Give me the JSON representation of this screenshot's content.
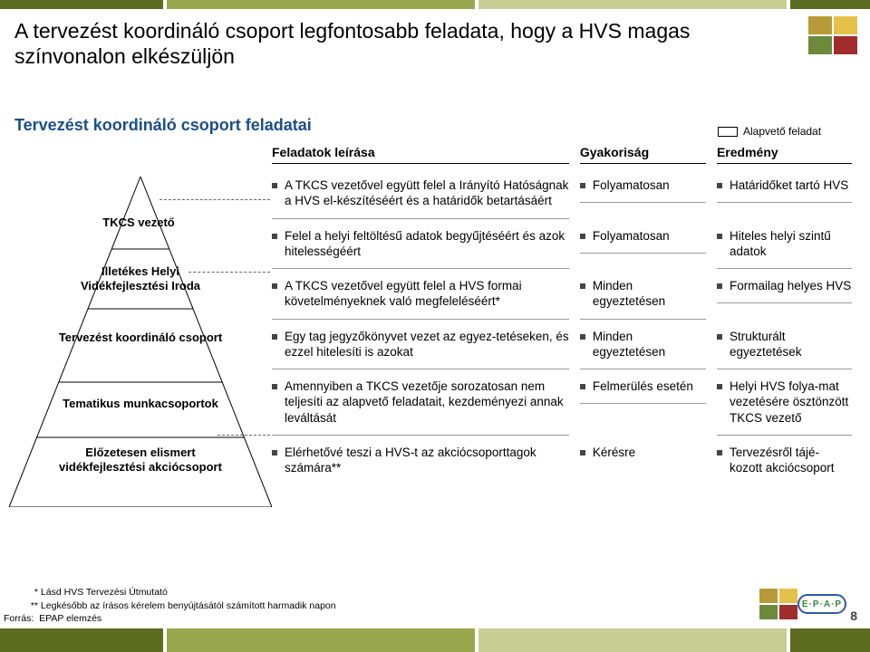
{
  "colors": {
    "olive_dark": "#5b6b1f",
    "olive_mid": "#99a84e",
    "olive_lt": "#c7cf94",
    "title_blue": "#1a4e8a",
    "epap_green": "#2f8a3a",
    "epap_blue": "#2e5aa8"
  },
  "page_title": "A tervezést koordináló csoport legfontosabb feladata, hogy a HVS magas színvonalon elkészüljön",
  "section_title": "Tervezést koordináló csoport feladatai",
  "legend_label": "Alapvető feladat",
  "columns": {
    "a": "Feladatok leírása",
    "b": "Gyakoriság",
    "c": "Eredmény"
  },
  "pyramid": {
    "l1": "TKCS vezető",
    "l2": "Illetékes Helyi Vidékfejlesztési Iroda",
    "l3": "Tervezést koordináló csoport",
    "l4": "Tematikus munkacsoportok",
    "l5": "Előzetesen elismert vidékfejlesztési akciócsoport"
  },
  "rows": [
    {
      "a": "A TKCS vezetővel együtt felel a Irányító Hatóságnak a HVS el-készítéséért és a határidők betartásáért",
      "b": "Folyamatosan",
      "c": "Határidőket tartó HVS"
    },
    {
      "a": "Felel a helyi feltöltésű adatok begyűjtéséért és azok hitelességéért",
      "b": "Folyamatosan",
      "c": "Hiteles helyi szintű adatok"
    },
    {
      "a": "A TKCS vezetővel együtt felel a HVS formai követelményeknek való megfeleléséért*",
      "b": "Minden egyeztetésen",
      "c": "Formailag helyes HVS"
    },
    {
      "a": "Egy tag jegyzőkönyvet vezet az egyez-tetéseken, és ezzel hitelesíti is azokat",
      "b": "Minden egyeztetésen",
      "c": "Strukturált egyeztetések"
    },
    {
      "a": "Amennyiben a TKCS vezetője sorozatosan nem teljesíti az alapvető feladatait, kezdeményezi annak leváltását",
      "b": "Felmerülés esetén",
      "c": "Helyi HVS folya-mat vezetésére ösztönzött TKCS vezető"
    },
    {
      "a": "Elérhetővé teszi a HVS-t az akciócsoporttagok számára**",
      "b": "Kérésre",
      "c": "Tervezésről tájé-kozott akciócsoport"
    }
  ],
  "footnotes": {
    "n1": "Lásd HVS Tervezési Útmutató",
    "n2": "Legkésőbb az írásos kérelem benyújtásától számított harmadik napon",
    "forras_label": "Forrás:",
    "forras_value": "EPAP elemzés"
  },
  "page_number": "8",
  "epap_label": "E·P·A·P"
}
